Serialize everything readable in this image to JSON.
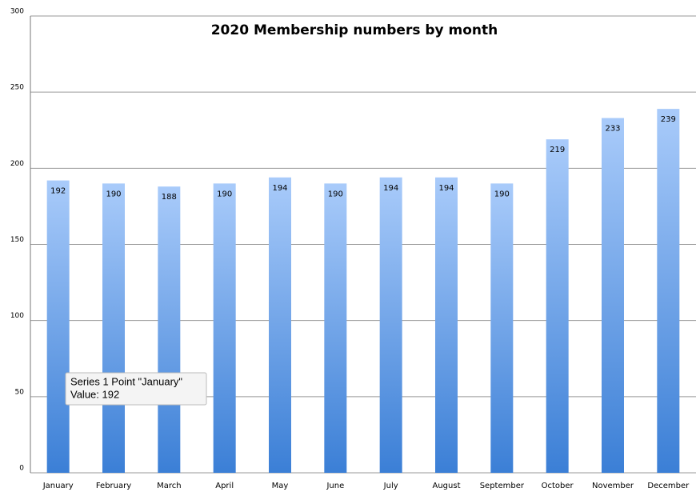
{
  "chart_data": {
    "type": "bar",
    "title": "2020 Membership numbers by month",
    "categories": [
      "January",
      "February",
      "March",
      "April",
      "May",
      "June",
      "July",
      "August",
      "September",
      "October",
      "November",
      "December"
    ],
    "values": [
      192,
      190,
      188,
      190,
      194,
      190,
      194,
      194,
      190,
      219,
      233,
      239
    ],
    "color": "#5b9cf0",
    "ylim": [
      0,
      300
    ],
    "yticks": [
      0,
      50,
      100,
      150,
      200,
      250,
      300
    ],
    "grid": true,
    "tooltip": {
      "lines": [
        "Series 1 Point \"January\"",
        "Value: 192"
      ]
    }
  }
}
